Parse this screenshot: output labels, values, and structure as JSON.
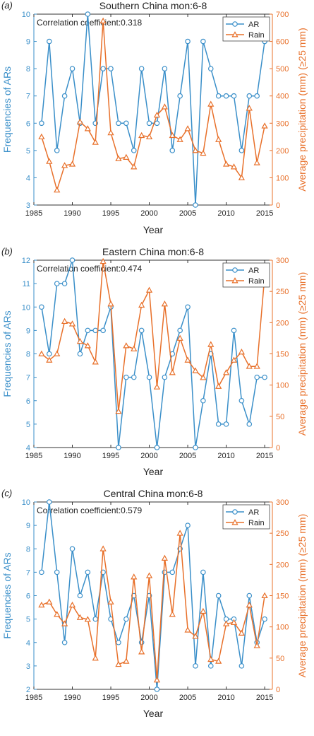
{
  "colors": {
    "ar": "#3a8fc9",
    "rain": "#e8702a",
    "axis": "#333333"
  },
  "chart_data": [
    {
      "type": "line",
      "panel_label": "(a)",
      "title": "Southern China  mon:6-8",
      "annotation": "Correlation coefficient:0.318",
      "xlabel": "Year",
      "ylabel": "Frequencies of ARs",
      "y2label": "Average precipitation (mm) (≥25 mm)",
      "xlim": [
        1985,
        2016
      ],
      "xticks": [
        1985,
        1990,
        1995,
        2000,
        2005,
        2010,
        2015
      ],
      "ylim": [
        3,
        10
      ],
      "yticks": [
        3,
        4,
        5,
        6,
        7,
        8,
        9,
        10
      ],
      "y2lim": [
        0,
        700
      ],
      "y2ticks": [
        0,
        100,
        200,
        300,
        400,
        500,
        600,
        700
      ],
      "legend_position": "top-right",
      "x": [
        1986,
        1987,
        1988,
        1989,
        1990,
        1991,
        1992,
        1993,
        1994,
        1995,
        1996,
        1997,
        1998,
        1999,
        2000,
        2001,
        2002,
        2003,
        2004,
        2005,
        2006,
        2007,
        2008,
        2009,
        2010,
        2011,
        2012,
        2013,
        2014,
        2015
      ],
      "series": [
        {
          "name": "AR",
          "axis": "left",
          "marker": "circle",
          "values": [
            6,
            9,
            5,
            7,
            8,
            6,
            10,
            6,
            8,
            8,
            6,
            6,
            5,
            8,
            6,
            6,
            8,
            5,
            7,
            9,
            3,
            9,
            8,
            7,
            7,
            7,
            5,
            7,
            7,
            9
          ]
        },
        {
          "name": "Rain",
          "axis": "right",
          "marker": "triangle",
          "values": [
            250,
            160,
            55,
            145,
            150,
            305,
            280,
            230,
            675,
            265,
            170,
            175,
            140,
            255,
            250,
            330,
            360,
            255,
            240,
            280,
            200,
            190,
            370,
            240,
            150,
            140,
            100,
            355,
            155,
            290
          ]
        }
      ]
    },
    {
      "type": "line",
      "panel_label": "(b)",
      "title": "Eastern China  mon:6-8",
      "annotation": "Correlation coefficient:0.474",
      "xlabel": "Year",
      "ylabel": "Frequencies of ARs",
      "y2label": "Average precipitation (mm) (≥25 mm)",
      "xlim": [
        1985,
        2016
      ],
      "xticks": [
        1985,
        1990,
        1995,
        2000,
        2005,
        2010,
        2015
      ],
      "ylim": [
        4,
        12
      ],
      "yticks": [
        4,
        5,
        6,
        7,
        8,
        9,
        10,
        11,
        12
      ],
      "y2lim": [
        0,
        300
      ],
      "y2ticks": [
        0,
        50,
        100,
        150,
        200,
        250,
        300
      ],
      "legend_position": "top-right",
      "x": [
        1986,
        1987,
        1988,
        1989,
        1990,
        1991,
        1992,
        1993,
        1994,
        1995,
        1996,
        1997,
        1998,
        1999,
        2000,
        2001,
        2002,
        2003,
        2004,
        2005,
        2006,
        2007,
        2008,
        2009,
        2010,
        2011,
        2012,
        2013,
        2014,
        2015
      ],
      "series": [
        {
          "name": "AR",
          "axis": "left",
          "marker": "circle",
          "values": [
            10,
            8,
            11,
            11,
            12,
            8,
            9,
            9,
            9,
            10,
            4,
            7,
            7,
            9,
            7,
            4,
            7,
            8,
            9,
            10,
            4,
            6,
            8,
            5,
            5,
            9,
            6,
            5,
            7,
            7
          ]
        },
        {
          "name": "Rain",
          "axis": "right",
          "marker": "triangle",
          "values": [
            150,
            140,
            150,
            202,
            198,
            170,
            163,
            137,
            298,
            230,
            58,
            163,
            158,
            228,
            252,
            97,
            230,
            120,
            175,
            140,
            123,
            112,
            165,
            98,
            120,
            140,
            153,
            130,
            130,
            275
          ]
        }
      ]
    },
    {
      "type": "line",
      "panel_label": "(c)",
      "title": "Central China  mon:6-8",
      "annotation": "Correlation coefficient:0.579",
      "xlabel": "Year",
      "ylabel": "Frequencies of ARs",
      "y2label": "Average precipitation (mm) (≥25 mm)",
      "xlim": [
        1985,
        2016
      ],
      "xticks": [
        1985,
        1990,
        1995,
        2000,
        2005,
        2010,
        2015
      ],
      "ylim": [
        2,
        10
      ],
      "yticks": [
        2,
        3,
        4,
        5,
        6,
        7,
        8,
        9,
        10
      ],
      "y2lim": [
        0,
        300
      ],
      "y2ticks": [
        0,
        50,
        100,
        150,
        200,
        250,
        300
      ],
      "legend_position": "top-right",
      "x": [
        1986,
        1987,
        1988,
        1989,
        1990,
        1991,
        1992,
        1993,
        1994,
        1995,
        1996,
        1997,
        1998,
        1999,
        2000,
        2001,
        2002,
        2003,
        2004,
        2005,
        2006,
        2007,
        2008,
        2009,
        2010,
        2011,
        2012,
        2013,
        2014,
        2015
      ],
      "series": [
        {
          "name": "AR",
          "axis": "left",
          "marker": "circle",
          "values": [
            7,
            10,
            7,
            4,
            8,
            6,
            7,
            5,
            7,
            5,
            4,
            5,
            6,
            4,
            6,
            2,
            7,
            7,
            8,
            9,
            3,
            7,
            3,
            6,
            5,
            5,
            3,
            6,
            4,
            5
          ]
        },
        {
          "name": "Rain",
          "axis": "right",
          "marker": "triangle",
          "values": [
            135,
            140,
            120,
            105,
            135,
            115,
            112,
            50,
            225,
            140,
            40,
            45,
            180,
            60,
            182,
            15,
            210,
            120,
            250,
            95,
            85,
            125,
            48,
            45,
            105,
            107,
            90,
            135,
            70,
            150
          ]
        }
      ]
    }
  ]
}
